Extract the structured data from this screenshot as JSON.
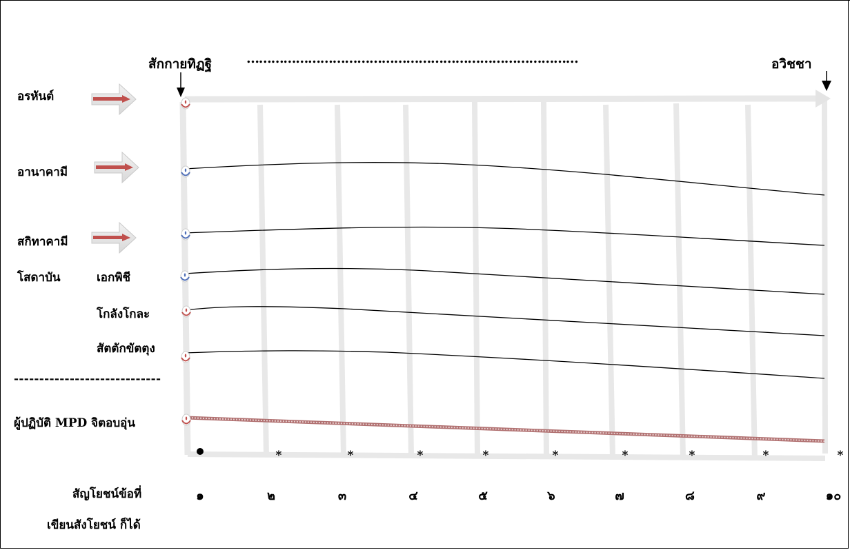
{
  "header": {
    "start_label": "สักกายทิฏฐิ",
    "dots": "………………………………………………………………………",
    "end_label": "อวิชชา"
  },
  "levels": [
    {
      "label": "อรหันต์",
      "has_arrow": true
    },
    {
      "label": "อานาคามี",
      "has_arrow": true
    },
    {
      "label": "สกิทาคามี",
      "has_arrow": true
    }
  ],
  "sotapanna": {
    "label": "โสดาบัน",
    "types": [
      "เอกพิชี",
      "โกลังโกละ",
      "สัตตักขัตตุง"
    ]
  },
  "separator": "-----------------------------",
  "practitioner": "ผู้ปฏิบัติ MPD  จิตอบอุ่น",
  "axis": {
    "caption_line1": "สัญโยชน์ข้อที่",
    "caption_line2": "เขียนสังโยชน์ ก็ได้",
    "numbers": [
      "๑",
      "๒",
      "๓",
      "๔",
      "๕",
      "๖",
      "๗",
      "๘",
      "๙",
      "๑๐"
    ],
    "star": "*"
  },
  "colors": {
    "arrow": "#c0504d",
    "grid": "#e8e8e8",
    "line": "#000000",
    "practitioner_line": "#b07070",
    "dot_red": "#c0504d",
    "dot_blue": "#4f6fb8"
  }
}
